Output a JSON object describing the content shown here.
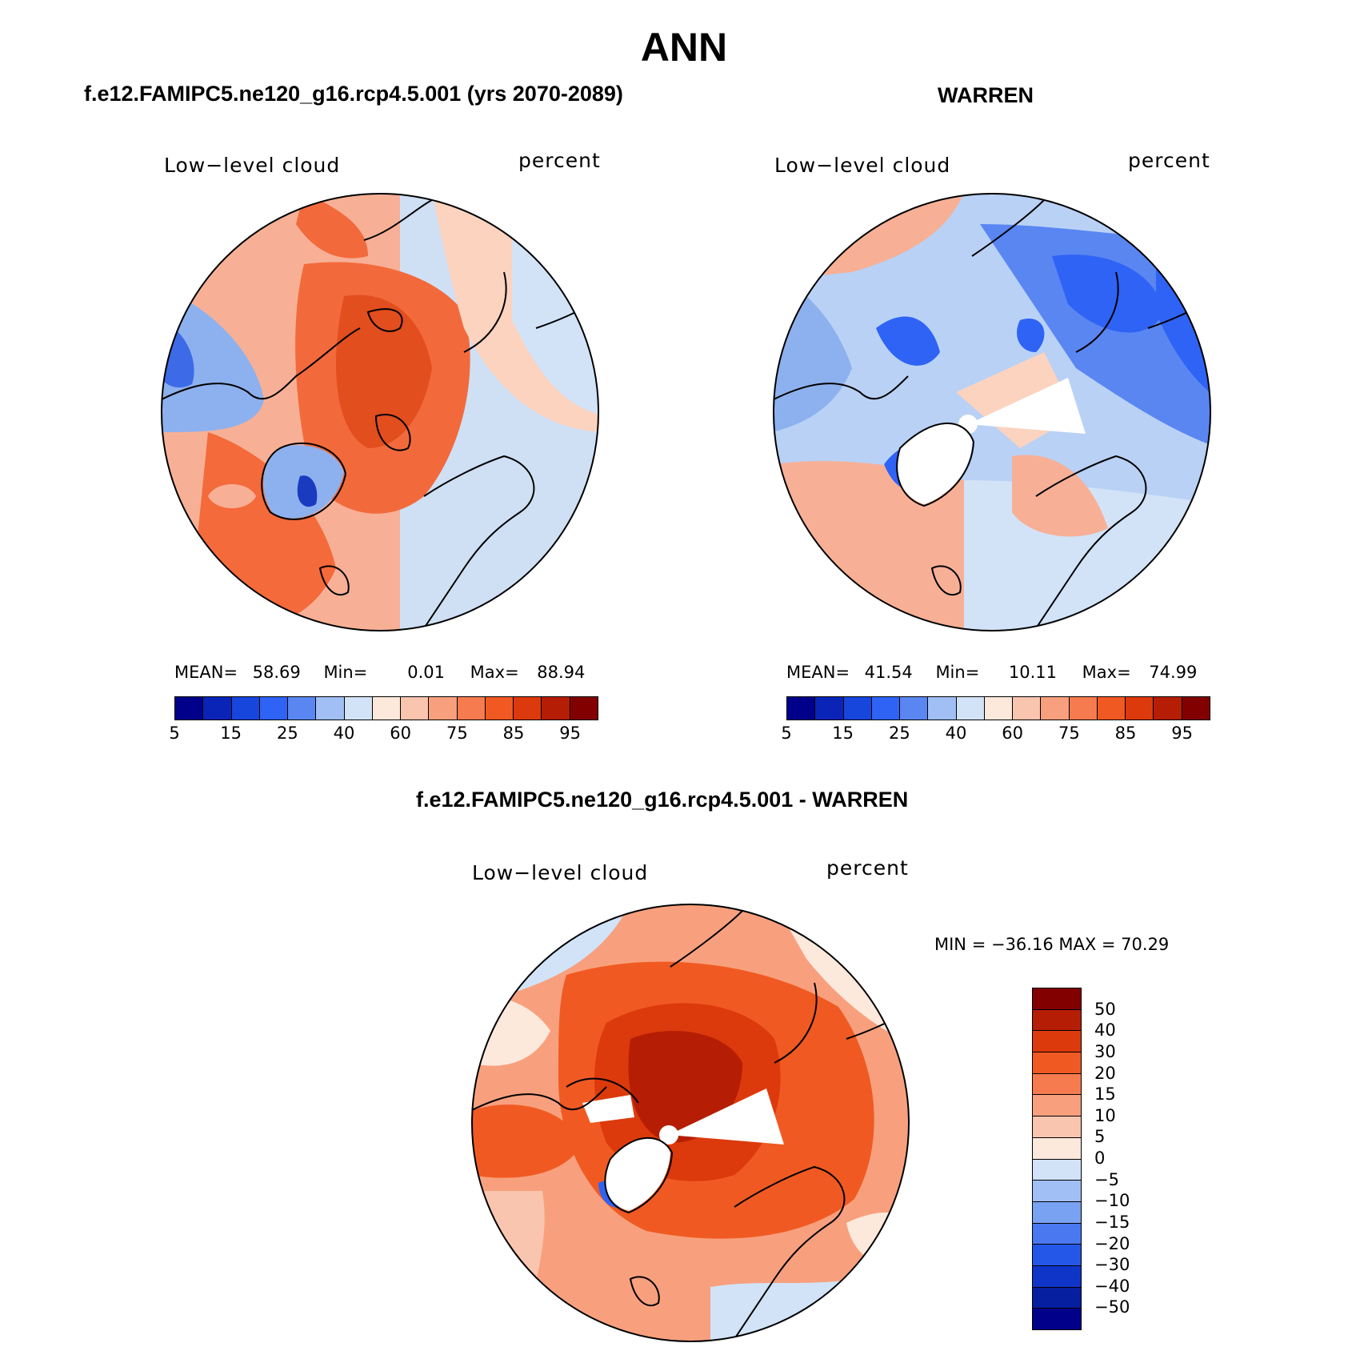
{
  "title": "ANN",
  "panels": [
    {
      "heading": "f.e12.FAMIPC5.ne120_g16.rcp4.5.001 (yrs 2070-2089)",
      "variable": "Low−level cloud",
      "units": "percent",
      "stats": {
        "mean_label": "MEAN=",
        "mean": "58.69",
        "min_label": "Min=",
        "min": "0.01",
        "max_label": "Max=",
        "max": "88.94"
      },
      "map_fill_rings": [
        "#f46a3a",
        "#f26a3c",
        "#f59470",
        "#fbd3bf",
        "#cfe0f5"
      ]
    },
    {
      "heading": "WARREN",
      "variable": "Low−level cloud",
      "units": "percent",
      "stats": {
        "mean_label": "MEAN=",
        "mean": "41.54",
        "min_label": "Min=",
        "min": "10.11",
        "max_label": "Max=",
        "max": "74.99"
      },
      "map_fill_rings": [
        "#a3c3f2",
        "#b9d1f5",
        "#8db1ee",
        "#fbd3bf",
        "#f7b096"
      ]
    }
  ],
  "diff_panel": {
    "heading": "f.e12.FAMIPC5.ne120_g16.rcp4.5.001 - WARREN",
    "variable": "Low−level cloud",
    "units": "percent",
    "minmax": "MIN = −36.16 MAX =   70.29"
  },
  "colorbar_top": {
    "colors": [
      "#00008b",
      "#0a24b8",
      "#1746dc",
      "#2e63f5",
      "#5a86f2",
      "#a1bff5",
      "#d2e3f8",
      "#fde8dc",
      "#fac5ae",
      "#f8a07e",
      "#f67b4f",
      "#f05a22",
      "#dc3a0c",
      "#b51e04",
      "#820000"
    ],
    "tick_labels": [
      "5",
      "15",
      "25",
      "40",
      "60",
      "75",
      "85",
      "95"
    ]
  },
  "colorbar_diff": {
    "colors": [
      "#820000",
      "#b51e04",
      "#dc3a0c",
      "#f05a22",
      "#f67b4f",
      "#f8a07e",
      "#fac5ae",
      "#fde8dc",
      "#d2e3f8",
      "#a1bff5",
      "#7aa2f2",
      "#4a78f0",
      "#2456e8",
      "#0f35c8",
      "#061fa0",
      "#00008b"
    ],
    "tick_labels": [
      "50",
      "40",
      "30",
      "20",
      "15",
      "10",
      "5",
      "0",
      "−5",
      "−10",
      "−15",
      "−20",
      "−30",
      "−40",
      "−50"
    ]
  }
}
